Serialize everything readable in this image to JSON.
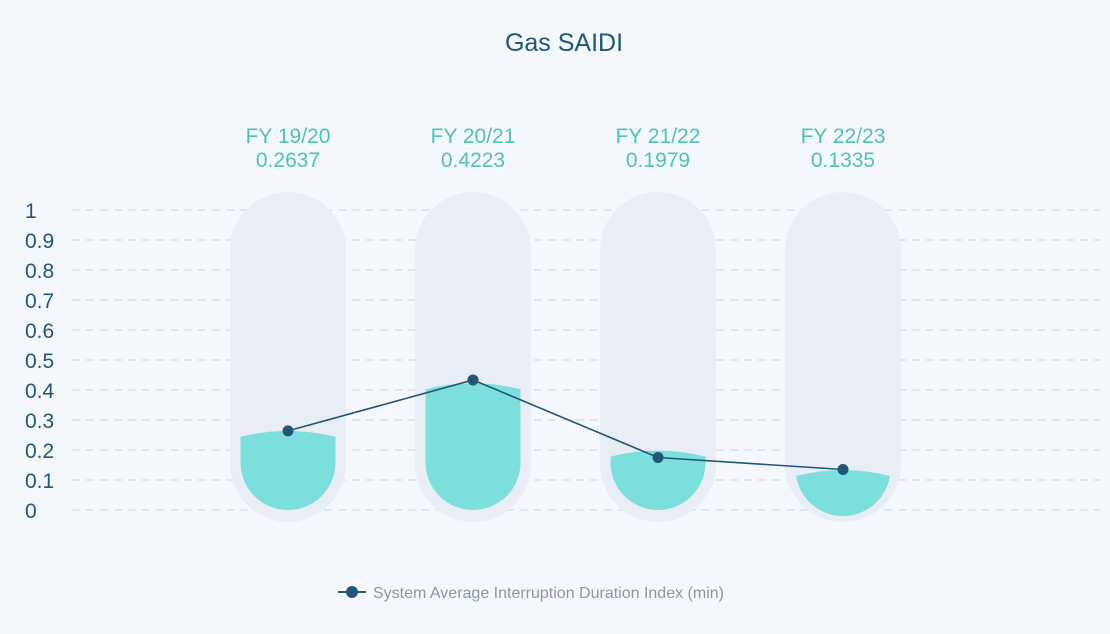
{
  "chart_data": {
    "type": "bar",
    "title": "Gas SAIDI",
    "categories": [
      "FY 19/20",
      "FY 20/21",
      "FY 21/22",
      "FY 22/23"
    ],
    "value_labels": [
      "0.2637",
      "0.4223",
      "0.1979",
      "0.1335"
    ],
    "series": [
      {
        "name": "System Average Interruption Duration Index (min)",
        "values": [
          0.2637,
          0.4223,
          0.1979,
          0.1335
        ]
      }
    ],
    "line_values": [
      0.2637,
      0.4335,
      0.175,
      0.135
    ],
    "yticks": [
      "0",
      "0.1",
      "0.2",
      "0.3",
      "0.4",
      "0.5",
      "0.6",
      "0.7",
      "0.8",
      "0.9",
      "1"
    ],
    "ylim": [
      0,
      1
    ],
    "grid": true,
    "legend": "bottom-center",
    "colors": {
      "bar": "#7ddfdb",
      "track": "#e9eef6",
      "line": "#1f5679",
      "grid": "#c9d2dc"
    }
  }
}
